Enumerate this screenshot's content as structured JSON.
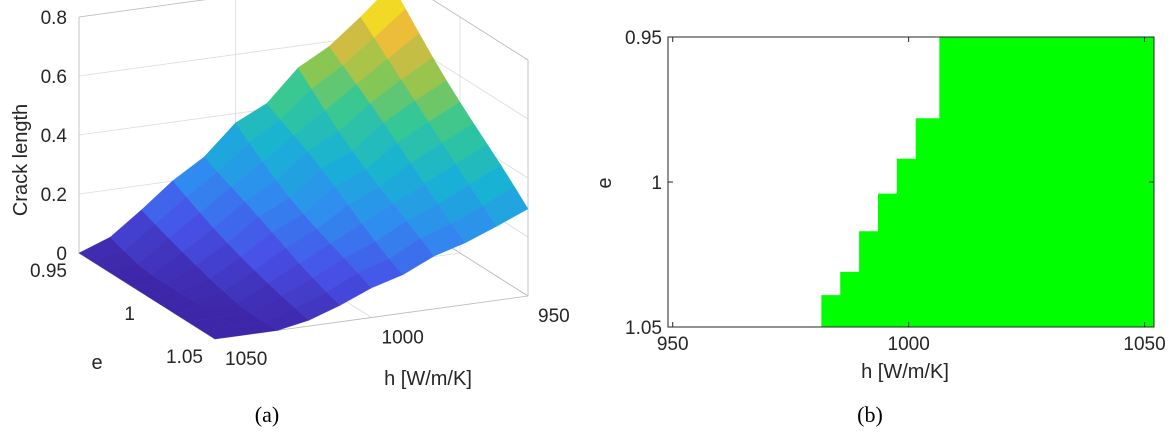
{
  "chart_data": [
    {
      "type": "surface",
      "panel_caption": "(a)",
      "xlabel": "h  [W/m/K]",
      "ylabel": "e",
      "zlabel": "Crack length",
      "x_ticks": [
        "950",
        "1000",
        "1050"
      ],
      "y_ticks": [
        "0.95",
        "1",
        "1.05"
      ],
      "z_ticks": [
        "0",
        "0.2",
        "0.4",
        "0.6",
        "0.8"
      ],
      "xlim": [
        950,
        1050
      ],
      "ylim": [
        0.95,
        1.05
      ],
      "zlim": [
        0,
        0.8
      ],
      "colormap": "parula",
      "x": [
        950,
        960,
        970,
        980,
        990,
        1000,
        1010,
        1020,
        1030,
        1040,
        1050
      ],
      "y": [
        0.95,
        0.96,
        0.97,
        0.98,
        0.99,
        1.0,
        1.01,
        1.02,
        1.03,
        1.04,
        1.05
      ],
      "z_corners": {
        "h950_e0.95": 0.75,
        "h950_e1.05": 0.29,
        "h1050_e0.95": 0.0,
        "h1050_e1.05": 0.0
      },
      "zero_boundary": [
        [
          1045,
          0.95
        ],
        [
          1025,
          1.05
        ]
      ]
    },
    {
      "type": "region",
      "panel_caption": "(b)",
      "xlabel": "h  [W/m/K]",
      "ylabel": "e",
      "x_ticks": [
        "950",
        "1000",
        "1050"
      ],
      "y_ticks": [
        "0.95",
        "1",
        "1.05"
      ],
      "xlim": [
        949,
        1052
      ],
      "ylim": [
        0.95,
        1.05
      ],
      "y_reversed": true,
      "fill_color": "#00ff00",
      "boundary_h": [
        1006.5,
        1006.5,
        1001.5,
        997.5,
        993.5,
        989.5,
        985.5,
        981.5,
        977.5
      ],
      "boundary_e": [
        0.95,
        0.964,
        0.978,
        0.992,
        1.004,
        1.017,
        1.031,
        1.039,
        1.05
      ]
    }
  ]
}
